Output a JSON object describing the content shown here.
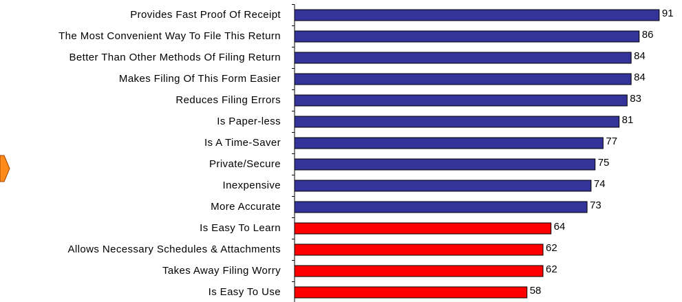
{
  "chart_data": {
    "type": "bar",
    "orientation": "horizontal",
    "categories": [
      "Provides Fast Proof Of Receipt",
      "The Most Convenient Way To File This Return",
      "Better Than Other Methods Of Filing Return",
      "Makes Filing Of This Form Easier",
      "Reduces Filing Errors",
      "Is Paper-less",
      "Is A Time-Saver",
      "Private/Secure",
      "Inexpensive",
      "More Accurate",
      "Is Easy To Learn",
      "Allows Necessary Schedules & Attachments",
      "Takes Away Filing Worry",
      "Is Easy To Use"
    ],
    "values": [
      91,
      86,
      84,
      84,
      83,
      81,
      77,
      75,
      74,
      73,
      64,
      62,
      62,
      58
    ],
    "colors": [
      "#333399",
      "#333399",
      "#333399",
      "#333399",
      "#333399",
      "#333399",
      "#333399",
      "#333399",
      "#333399",
      "#333399",
      "#ff0000",
      "#ff0000",
      "#ff0000",
      "#ff0000"
    ],
    "xlim": [
      0,
      96
    ]
  }
}
